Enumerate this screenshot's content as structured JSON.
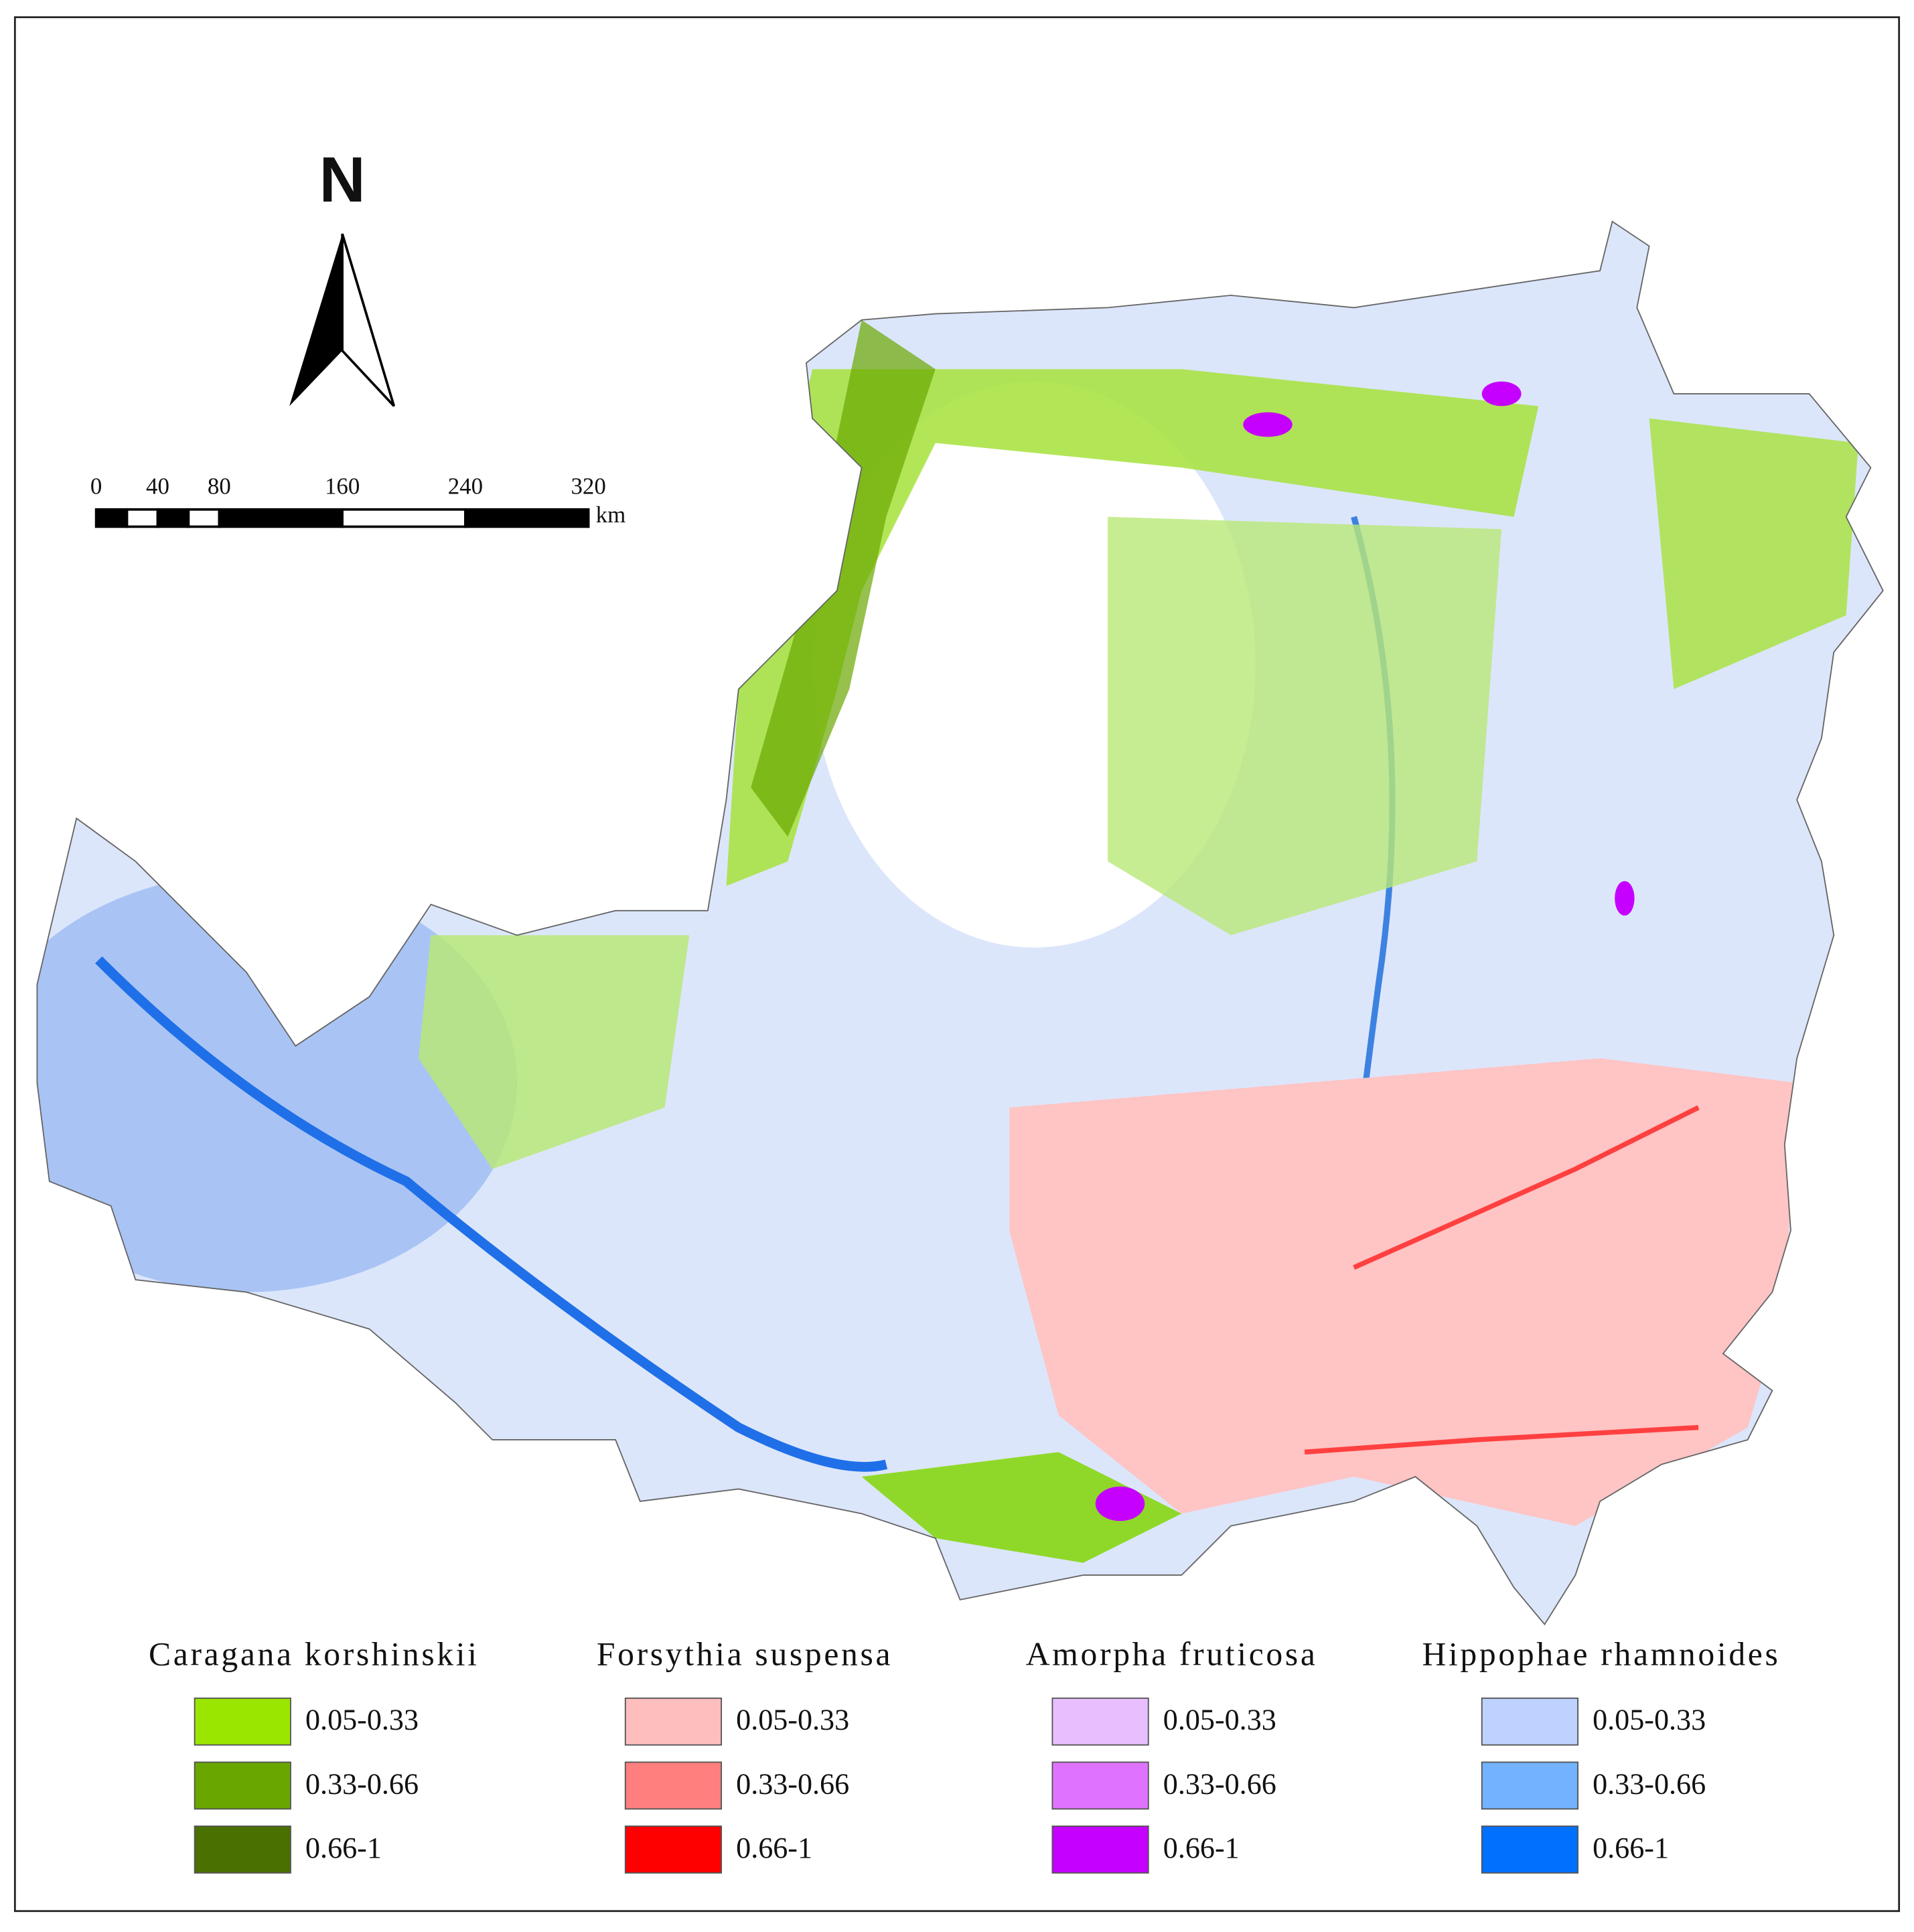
{
  "north_arrow": {
    "label": "N"
  },
  "scale_bar": {
    "ticks": [
      0,
      40,
      80,
      160,
      240,
      320
    ],
    "unit": "km"
  },
  "legend": [
    {
      "title": "Caragana korshinskii",
      "classes": [
        {
          "label": "0.05-0.33",
          "color": "#9be600"
        },
        {
          "label": "0.33-0.66",
          "color": "#6aa600"
        },
        {
          "label": "0.66-1",
          "color": "#4a7000"
        }
      ]
    },
    {
      "title": "Forsythia suspensa",
      "classes": [
        {
          "label": "0.05-0.33",
          "color": "#ffbebe"
        },
        {
          "label": "0.33-0.66",
          "color": "#ff7f7f"
        },
        {
          "label": "0.66-1",
          "color": "#ff0000"
        }
      ]
    },
    {
      "title": "Amorpha fruticosa",
      "classes": [
        {
          "label": "0.05-0.33",
          "color": "#e8beff"
        },
        {
          "label": "0.33-0.66",
          "color": "#df73ff"
        },
        {
          "label": "0.66-1",
          "color": "#c500ff"
        }
      ]
    },
    {
      "title": "Hippophae rhamnoides",
      "classes": [
        {
          "label": "0.05-0.33",
          "color": "#bed2ff"
        },
        {
          "label": "0.33-0.66",
          "color": "#73b2ff"
        },
        {
          "label": "0.66-1",
          "color": "#0070ff"
        }
      ]
    }
  ]
}
